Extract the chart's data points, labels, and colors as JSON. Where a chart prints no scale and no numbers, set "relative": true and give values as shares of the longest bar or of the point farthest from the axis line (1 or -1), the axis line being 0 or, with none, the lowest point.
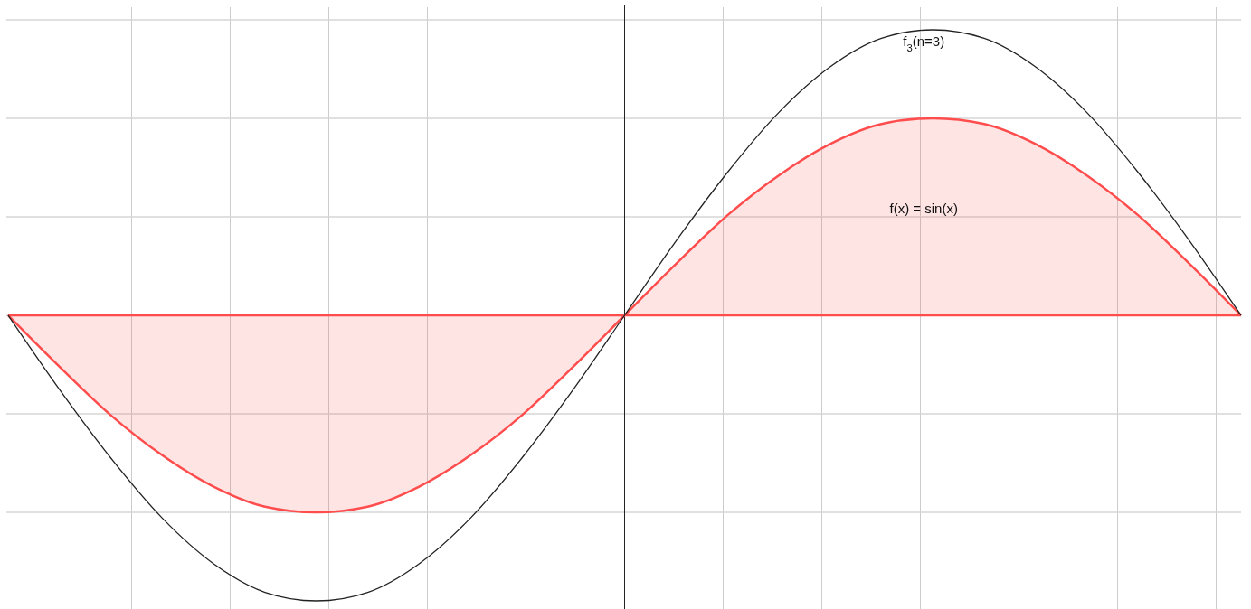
{
  "chart_data": {
    "type": "area",
    "relative": true,
    "grid": true,
    "legend": false,
    "categories": [
      null,
      null,
      null,
      null,
      null,
      null,
      null,
      null,
      null,
      null,
      null,
      null,
      null,
      null,
      null,
      null,
      null,
      null,
      null,
      null,
      null,
      null,
      null,
      null,
      null
    ],
    "series": [
      {
        "name": "f(x) = sin(x)",
        "color": "#ff4d4d",
        "values": [
          0,
          -0.18,
          -0.35,
          -0.49,
          -0.6,
          -0.67,
          -0.69,
          -0.67,
          -0.6,
          -0.49,
          -0.35,
          -0.18,
          0,
          0.18,
          0.35,
          0.49,
          0.6,
          0.67,
          0.69,
          0.67,
          0.6,
          0.49,
          0.35,
          0.18,
          0
        ]
      },
      {
        "name": "f$_{3}$(n=3)",
        "type": "line",
        "color": "#222222",
        "values": [
          0,
          -0.26,
          -0.5,
          -0.71,
          -0.87,
          -0.97,
          -1,
          -0.97,
          -0.87,
          -0.71,
          -0.5,
          -0.26,
          0,
          0.26,
          0.5,
          0.71,
          0.87,
          0.97,
          1,
          0.97,
          0.87,
          0.71,
          0.5,
          0.26,
          0
        ]
      }
    ]
  }
}
